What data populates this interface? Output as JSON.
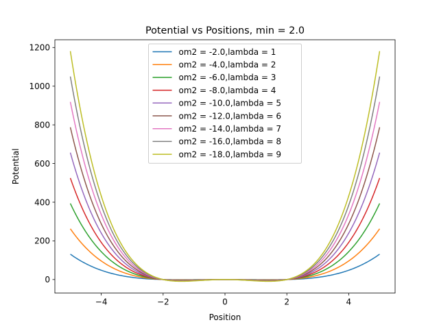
{
  "chart_data": {
    "type": "line",
    "title": "Potential vs Positions, min  = 2.0",
    "xlabel": "Position",
    "ylabel": "Potential",
    "xlim": [
      -5.5,
      5.5
    ],
    "ylim": [
      -70,
      1240
    ],
    "xticks": [
      -4,
      -2,
      0,
      2,
      4
    ],
    "yticks": [
      0,
      200,
      400,
      600,
      800,
      1000,
      1200
    ],
    "x_domain": [
      -5,
      5
    ],
    "formula": "V(x) = om2*x^2/2 + lambda*x^4/4",
    "grid": false,
    "legend_position": "upper center",
    "series": [
      {
        "name": "om2 = -2.0,lambda = 1",
        "om2": -2.0,
        "lambda": 1,
        "color": "#1f77b4"
      },
      {
        "name": "om2 = -4.0,lambda = 2",
        "om2": -4.0,
        "lambda": 2,
        "color": "#ff7f0e"
      },
      {
        "name": "om2 = -6.0,lambda = 3",
        "om2": -6.0,
        "lambda": 3,
        "color": "#2ca02c"
      },
      {
        "name": "om2 = -8.0,lambda = 4",
        "om2": -8.0,
        "lambda": 4,
        "color": "#d62728"
      },
      {
        "name": "om2 = -10.0,lambda = 5",
        "om2": -10.0,
        "lambda": 5,
        "color": "#9467bd"
      },
      {
        "name": "om2 = -12.0,lambda = 6",
        "om2": -12.0,
        "lambda": 6,
        "color": "#8c564b"
      },
      {
        "name": "om2 = -14.0,lambda = 7",
        "om2": -14.0,
        "lambda": 7,
        "color": "#e377c2"
      },
      {
        "name": "om2 = -16.0,lambda = 8",
        "om2": -16.0,
        "lambda": 8,
        "color": "#7f7f7f"
      },
      {
        "name": "om2 = -18.0,lambda = 9",
        "om2": -18.0,
        "lambda": 9,
        "color": "#bcbd22"
      }
    ]
  }
}
